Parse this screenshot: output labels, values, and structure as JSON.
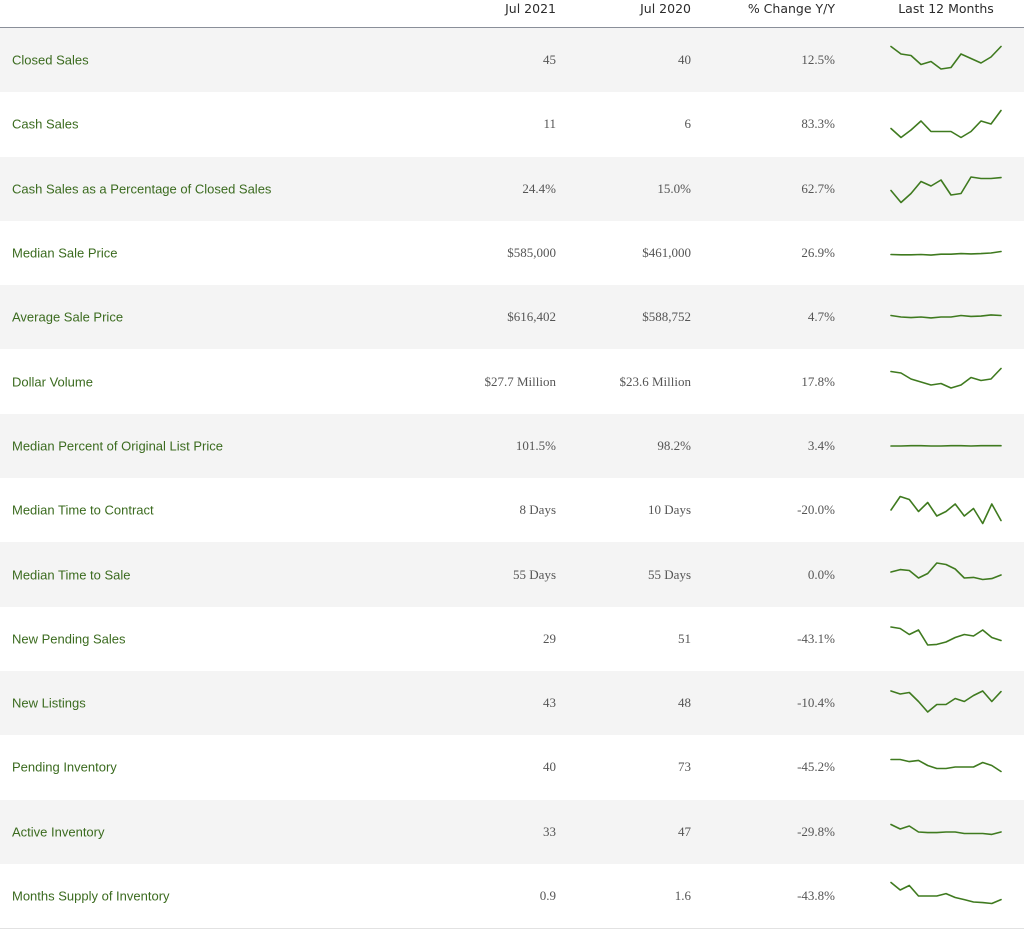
{
  "header": {
    "col_jul2021": "Jul 2021",
    "col_jul2020": "Jul 2020",
    "col_change": "% Change Y/Y",
    "col_trend": "Last 12 Months"
  },
  "accent_color": "#3f7a1f",
  "rows": [
    {
      "label": "Closed Sales",
      "jul2021": "45",
      "jul2020": "40",
      "change": "12.5%",
      "trend": [
        0.95,
        0.7,
        0.65,
        0.35,
        0.45,
        0.2,
        0.25,
        0.7,
        0.55,
        0.4,
        0.6,
        0.95
      ]
    },
    {
      "label": "Cash Sales",
      "jul2021": "11",
      "jul2020": "6",
      "change": "83.3%",
      "trend": [
        0.35,
        0.05,
        0.3,
        0.6,
        0.25,
        0.25,
        0.25,
        0.05,
        0.25,
        0.6,
        0.5,
        0.95
      ]
    },
    {
      "label": "Cash Sales as a Percentage of Closed Sales",
      "jul2021": "24.4%",
      "jul2020": "15.0%",
      "change": "62.7%",
      "trend": [
        0.45,
        0.05,
        0.35,
        0.75,
        0.6,
        0.8,
        0.3,
        0.35,
        0.9,
        0.85,
        0.85,
        0.88
      ]
    },
    {
      "label": "Median Sale Price",
      "jul2021": "$585,000",
      "jul2020": "$461,000",
      "change": "26.9%",
      "trend": [
        0.45,
        0.44,
        0.44,
        0.45,
        0.43,
        0.46,
        0.46,
        0.48,
        0.47,
        0.48,
        0.5,
        0.55
      ]
    },
    {
      "label": "Average Sale Price",
      "jul2021": "$616,402",
      "jul2020": "$588,752",
      "change": "4.7%",
      "trend": [
        0.55,
        0.5,
        0.48,
        0.5,
        0.47,
        0.5,
        0.5,
        0.55,
        0.52,
        0.53,
        0.57,
        0.55
      ]
    },
    {
      "label": "Dollar Volume",
      "jul2021": "$27.7 Million",
      "jul2020": "$23.6 Million",
      "change": "17.8%",
      "trend": [
        0.85,
        0.8,
        0.6,
        0.5,
        0.4,
        0.45,
        0.3,
        0.4,
        0.65,
        0.55,
        0.6,
        0.95
      ]
    },
    {
      "label": "Median Percent of Original List Price",
      "jul2021": "101.5%",
      "jul2020": "98.2%",
      "change": "3.4%",
      "trend": [
        0.5,
        0.5,
        0.51,
        0.51,
        0.5,
        0.5,
        0.51,
        0.51,
        0.5,
        0.51,
        0.51,
        0.51
      ]
    },
    {
      "label": "Median Time to Contract",
      "jul2021": "8 Days",
      "jul2020": "10 Days",
      "change": "-20.0%",
      "trend": [
        0.5,
        0.95,
        0.85,
        0.45,
        0.75,
        0.3,
        0.45,
        0.7,
        0.3,
        0.55,
        0.05,
        0.7,
        0.15
      ]
    },
    {
      "label": "Median Time to Sale",
      "jul2021": "55 Days",
      "jul2020": "55 Days",
      "change": "0.0%",
      "trend": [
        0.6,
        0.68,
        0.65,
        0.4,
        0.55,
        0.9,
        0.85,
        0.7,
        0.4,
        0.42,
        0.35,
        0.38,
        0.5
      ]
    },
    {
      "label": "New Pending Sales",
      "jul2021": "29",
      "jul2020": "51",
      "change": "-43.1%",
      "trend": [
        0.9,
        0.85,
        0.65,
        0.8,
        0.3,
        0.32,
        0.4,
        0.55,
        0.65,
        0.6,
        0.8,
        0.55,
        0.45
      ]
    },
    {
      "label": "New Listings",
      "jul2021": "43",
      "jul2020": "48",
      "change": "-10.4%",
      "trend": [
        0.9,
        0.8,
        0.85,
        0.55,
        0.2,
        0.45,
        0.45,
        0.65,
        0.55,
        0.75,
        0.9,
        0.55,
        0.88
      ]
    },
    {
      "label": "Pending Inventory",
      "jul2021": "40",
      "jul2020": "73",
      "change": "-45.2%",
      "trend": [
        0.75,
        0.75,
        0.68,
        0.72,
        0.55,
        0.45,
        0.45,
        0.5,
        0.5,
        0.5,
        0.65,
        0.55,
        0.35
      ]
    },
    {
      "label": "Active Inventory",
      "jul2021": "33",
      "jul2020": "47",
      "change": "-29.8%",
      "trend": [
        0.75,
        0.6,
        0.7,
        0.5,
        0.48,
        0.48,
        0.5,
        0.5,
        0.45,
        0.45,
        0.45,
        0.42,
        0.5
      ]
    },
    {
      "label": "Months Supply of Inventory",
      "jul2021": "0.9",
      "jul2020": "1.6",
      "change": "-43.8%",
      "trend": [
        0.95,
        0.7,
        0.85,
        0.5,
        0.5,
        0.5,
        0.58,
        0.45,
        0.38,
        0.3,
        0.28,
        0.25,
        0.38
      ]
    }
  ]
}
